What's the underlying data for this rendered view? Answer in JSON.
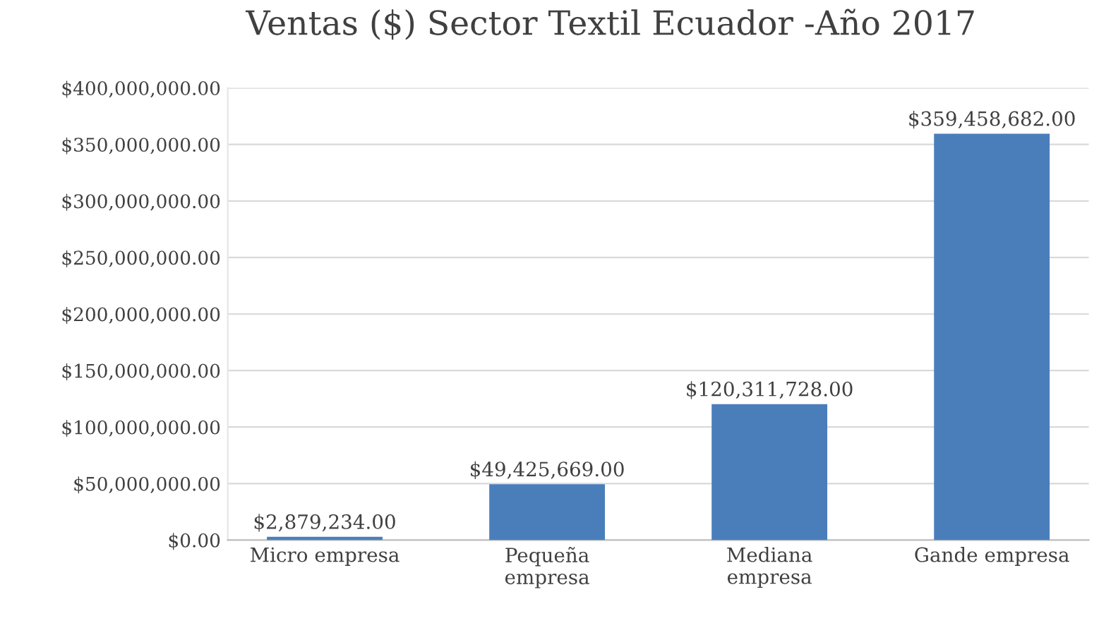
{
  "chart_data": {
    "type": "bar",
    "title": "Ventas ($) Sector Textil Ecuador -Año 2017",
    "categories": [
      "Micro empresa",
      "Pequeña\nempresa",
      "Mediana\nempresa",
      "Gande empresa"
    ],
    "values": [
      2879234,
      49425669,
      120311728,
      359458682
    ],
    "value_labels": [
      "$2,879,234.00",
      "$49,425,669.00",
      "$120,311,728.00",
      "$359,458,682.00"
    ],
    "color": "#4a7ebb",
    "ylim": [
      0,
      400000000
    ],
    "yticks": [
      {
        "value": 0,
        "label": "$0.00"
      },
      {
        "value": 50000000,
        "label": "$50,000,000.00"
      },
      {
        "value": 100000000,
        "label": "$100,000,000.00"
      },
      {
        "value": 150000000,
        "label": "$150,000,000.00"
      },
      {
        "value": 200000000,
        "label": "$200,000,000.00"
      },
      {
        "value": 250000000,
        "label": "$250,000,000.00"
      },
      {
        "value": 300000000,
        "label": "$300,000,000.00"
      },
      {
        "value": 350000000,
        "label": "$350,000,000.00"
      },
      {
        "value": 400000000,
        "label": "$400,000,000.00"
      }
    ],
    "grid": "y",
    "legend": false
  }
}
